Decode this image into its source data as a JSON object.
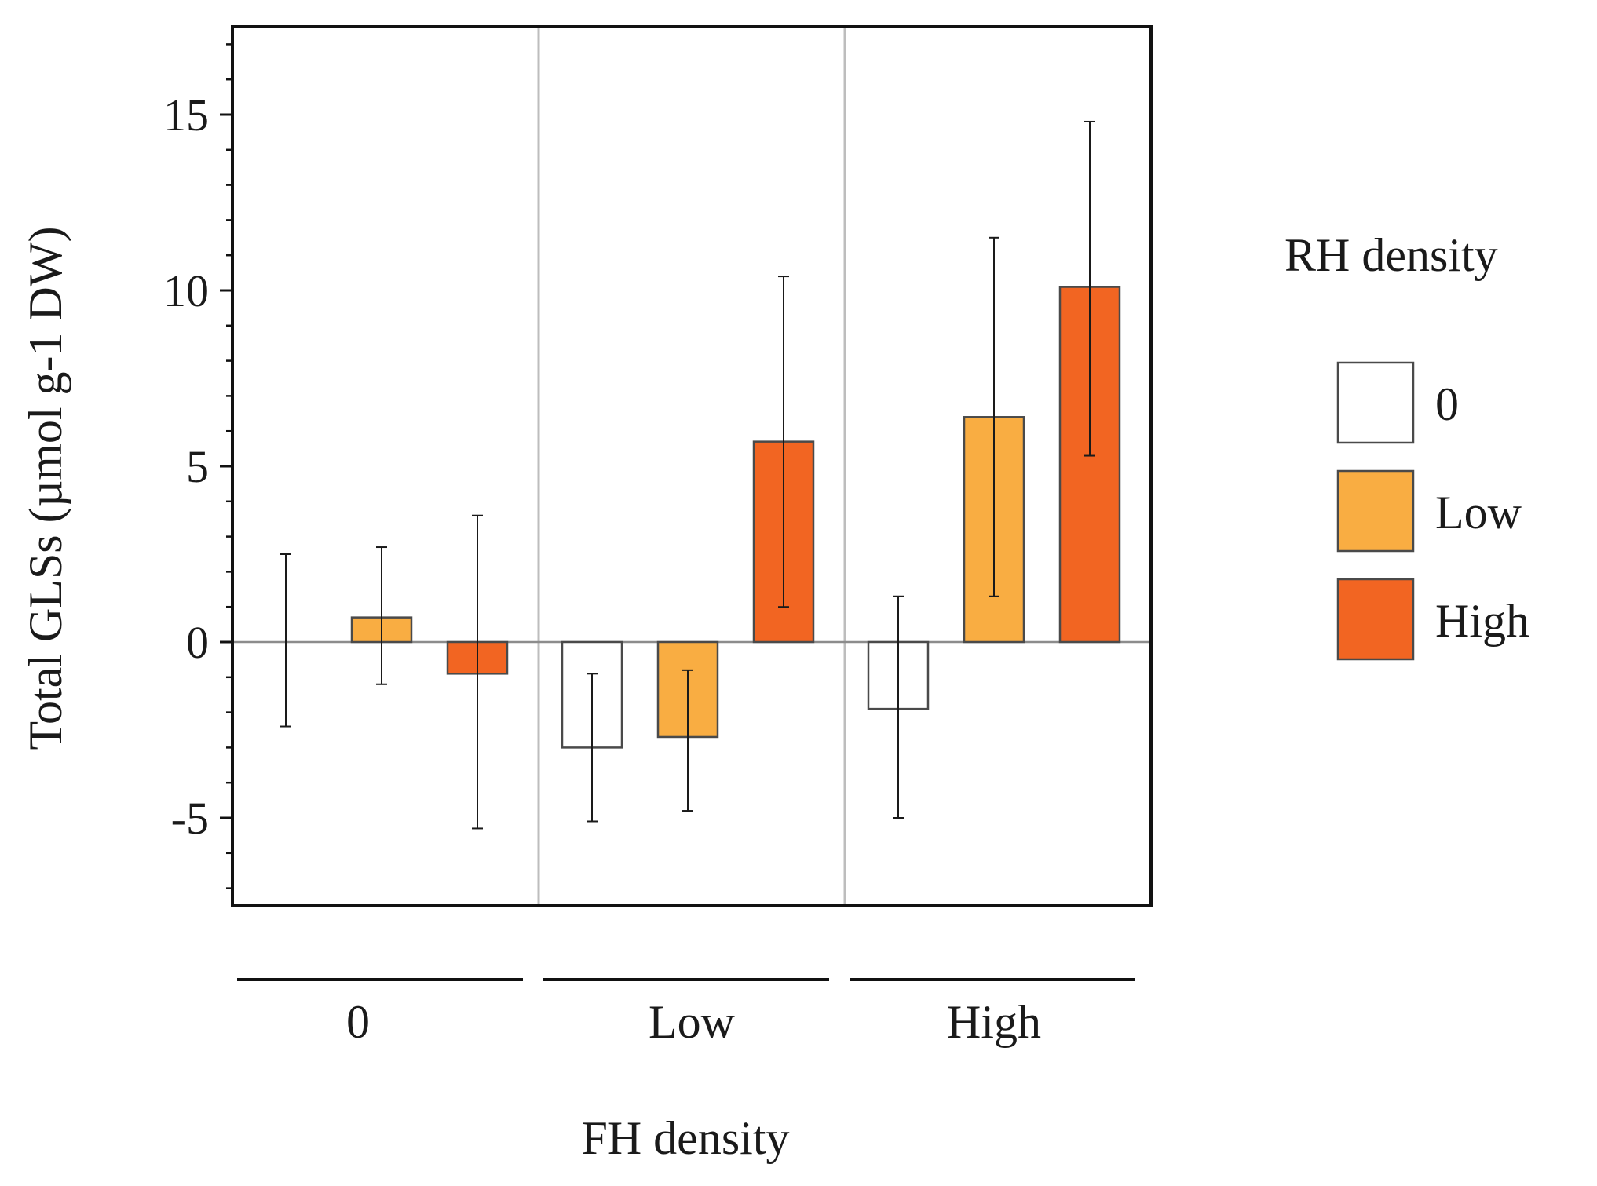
{
  "chart_data": {
    "type": "bar",
    "title": "",
    "ylabel": "Total GLSs (µmol g-1 DW)",
    "xlabel": "FH density",
    "ylim": [
      -7.5,
      17.5
    ],
    "yticks": [
      -5,
      0,
      5,
      10,
      15
    ],
    "ytick_labels": [
      "-5",
      "0",
      "5",
      "10",
      "15"
    ],
    "grid": false,
    "categories": [
      "0",
      "Low",
      "High"
    ],
    "legend": {
      "title": "RH density",
      "position": "right"
    },
    "series": [
      {
        "name": "0",
        "color": "#ffffff",
        "values": [
          0.0,
          -3.0,
          -1.9
        ],
        "error_low": [
          -2.4,
          -5.1,
          -5.0
        ],
        "error_high": [
          2.5,
          -0.9,
          1.3
        ]
      },
      {
        "name": "Low",
        "color": "#f9ad42",
        "values": [
          0.7,
          -2.7,
          6.4
        ],
        "error_low": [
          -1.2,
          -4.8,
          1.3
        ],
        "error_high": [
          2.7,
          -0.8,
          11.5
        ]
      },
      {
        "name": "High",
        "color": "#f26522",
        "values": [
          -0.9,
          5.7,
          10.1
        ],
        "error_low": [
          -5.3,
          1.0,
          5.3
        ],
        "error_high": [
          3.6,
          10.4,
          14.8
        ]
      }
    ]
  }
}
